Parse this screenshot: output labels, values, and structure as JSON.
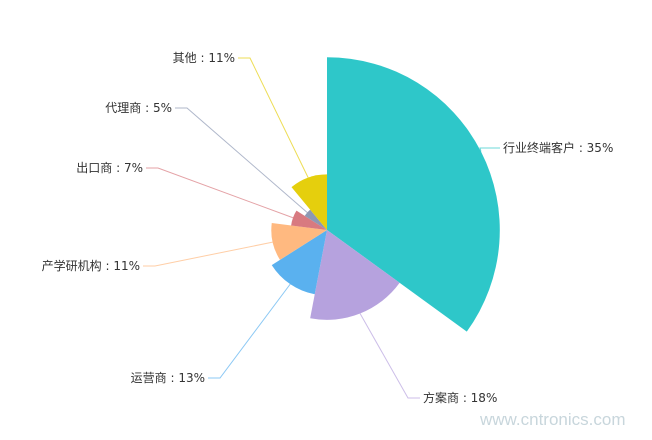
{
  "chart_data": {
    "type": "pie",
    "rose_type": "radius",
    "start": "top",
    "direction": "clockwise",
    "slices": [
      {
        "label": "行业终端客户 : 35%",
        "name": "行业终端客户",
        "value": 35,
        "color": "#2ec7c9"
      },
      {
        "label": "方案商 : 18%",
        "name": "方案商",
        "value": 18,
        "color": "#b6a2de"
      },
      {
        "label": "运营商 : 13%",
        "name": "运营商",
        "value": 13,
        "color": "#5ab1ef"
      },
      {
        "label": "产学研机构 : 11%",
        "name": "产学研机构",
        "value": 11,
        "color": "#ffb980"
      },
      {
        "label": "出口商 : 7%",
        "name": "出口商",
        "value": 7,
        "color": "#d87a80"
      },
      {
        "label": "代理商 : 5%",
        "name": "代理商",
        "value": 5,
        "color": "#8d98b3"
      },
      {
        "label": "其他 : 11%",
        "name": "其他",
        "value": 11,
        "color": "#e5cf0d"
      }
    ]
  },
  "watermark": "www.cntronics.com"
}
